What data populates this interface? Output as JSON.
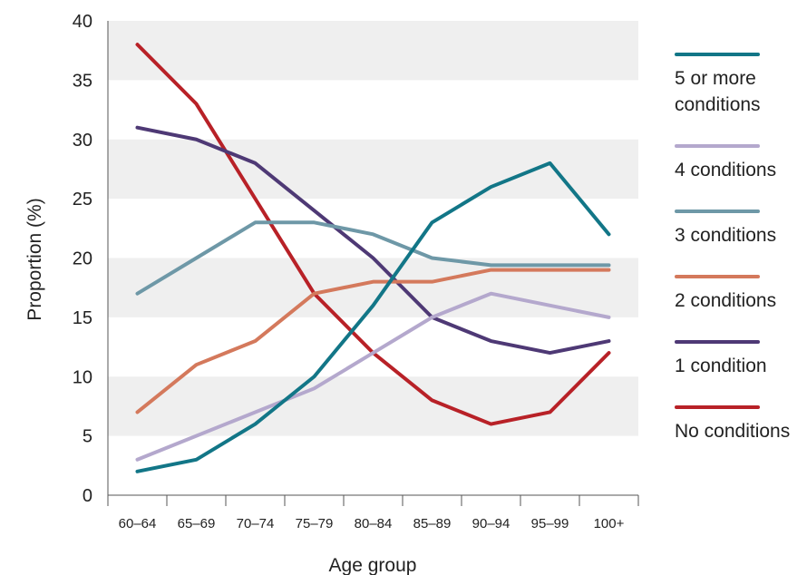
{
  "chart_data": {
    "type": "line",
    "title": "",
    "xlabel": "Age group",
    "ylabel": "Proportion (%)",
    "ylim": [
      0,
      40
    ],
    "yticks": [
      "0",
      "5",
      "10",
      "15",
      "20",
      "25",
      "30",
      "35",
      "40"
    ],
    "grid": "alternating horizontal bands",
    "legend_position": "right",
    "categories": [
      "60–64",
      "65–69",
      "70–74",
      "75–79",
      "80–84",
      "85–89",
      "90–94",
      "95–99",
      "100+"
    ],
    "series": [
      {
        "name": "5 or more\nconditions",
        "color": "#127687",
        "values": [
          2,
          3,
          6,
          10,
          16,
          23,
          26,
          28,
          22
        ]
      },
      {
        "name": "4 conditions",
        "color": "#b4a8cd",
        "values": [
          3,
          5,
          7,
          9,
          12,
          15,
          17,
          16,
          15
        ]
      },
      {
        "name": "3 conditions",
        "color": "#6e98a7",
        "values": [
          17,
          20,
          23,
          23,
          22,
          20,
          19.4,
          19.4,
          19.4
        ]
      },
      {
        "name": "2 conditions",
        "color": "#d4795c",
        "values": [
          7,
          11,
          13,
          17,
          18,
          18,
          19,
          19,
          19
        ]
      },
      {
        "name": "1 condition",
        "color": "#4e3975",
        "values": [
          31,
          30,
          28,
          24,
          20,
          15,
          13,
          12,
          13
        ]
      },
      {
        "name": "No conditions",
        "color": "#b82127",
        "values": [
          38,
          33,
          25,
          17,
          12,
          8,
          6,
          7,
          12
        ]
      }
    ]
  }
}
